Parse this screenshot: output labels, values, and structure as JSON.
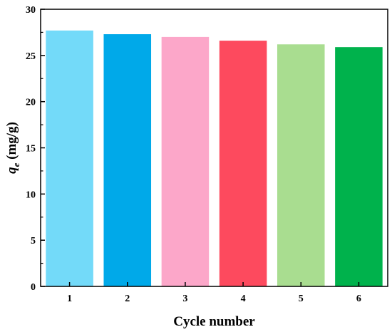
{
  "chart_data": {
    "type": "bar",
    "title": "",
    "xlabel": "Cycle number",
    "ylabel": {
      "main": "q",
      "sub": "e",
      "unit": " (mg/g)"
    },
    "categories": [
      "1",
      "2",
      "3",
      "4",
      "5",
      "6"
    ],
    "values": [
      27.7,
      27.3,
      27.0,
      26.6,
      26.2,
      25.9
    ],
    "bar_colors": [
      "#73daf9",
      "#00a9e9",
      "#fca7c9",
      "#fd4a5e",
      "#a9dd90",
      "#00b24c"
    ],
    "ylim": [
      0,
      30
    ],
    "yticks": [
      "0",
      "5",
      "10",
      "15",
      "20",
      "25",
      "30"
    ],
    "grid": false,
    "legend": "none"
  }
}
